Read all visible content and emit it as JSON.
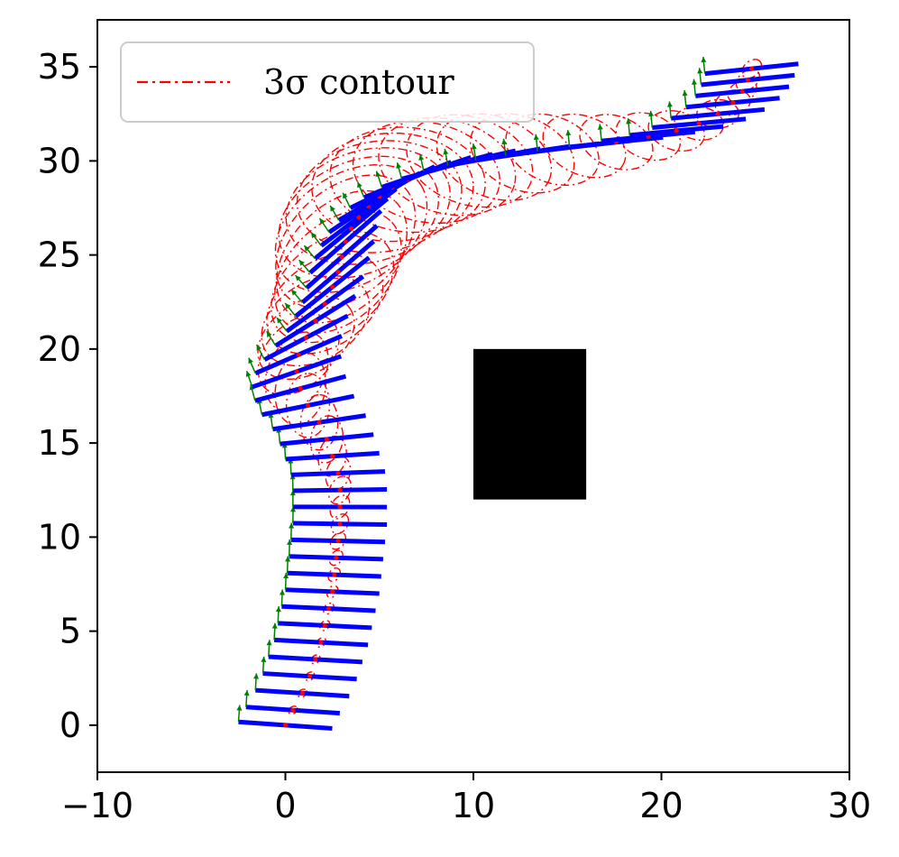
{
  "chart_data": {
    "type": "line",
    "title": "",
    "xlabel": "",
    "ylabel": "",
    "xlim": [
      -10,
      30
    ],
    "ylim": [
      -2.5,
      37.5
    ],
    "xticks": [
      -10,
      0,
      10,
      20,
      30
    ],
    "yticks": [
      0,
      5,
      10,
      15,
      20,
      25,
      30,
      35
    ],
    "xtick_labels": [
      "−10",
      "0",
      "10",
      "20",
      "30"
    ],
    "ytick_labels": [
      "0",
      "5",
      "10",
      "15",
      "20",
      "25",
      "30",
      "35"
    ],
    "grid": false,
    "legend": {
      "position": "top-left",
      "entries": [
        {
          "label": "3σ contour",
          "color": "#ff0000",
          "style": "dash-dot"
        }
      ]
    },
    "obstacle": {
      "x": [
        10,
        16
      ],
      "y": [
        12,
        20
      ],
      "color": "#000000"
    },
    "trajectory": {
      "x": [
        0,
        0.4,
        0.9,
        1.3,
        1.6,
        1.9,
        2.1,
        2.3,
        2.5,
        2.6,
        2.7,
        2.8,
        2.9,
        2.9,
        2.9,
        2.8,
        2.5,
        2.2,
        1.8,
        1.2,
        0.8,
        0.6,
        0.7,
        1.1,
        1.6,
        2.1,
        2.5,
        2.8,
        3.0,
        3.2,
        3.5,
        3.9,
        4.4,
        5.0,
        5.7,
        6.5,
        7.5,
        8.6,
        9.8,
        11.1,
        12.6,
        14.2,
        15.9,
        17.6,
        19.3,
        20.8,
        22.0,
        23.0,
        23.8,
        24.3,
        24.6,
        24.8
      ],
      "y": [
        0,
        0.8,
        1.7,
        2.6,
        3.5,
        4.4,
        5.3,
        6.2,
        7.1,
        8.0,
        8.9,
        9.8,
        10.7,
        11.6,
        12.5,
        13.4,
        14.3,
        15.2,
        16.1,
        17.0,
        17.9,
        18.8,
        19.7,
        20.6,
        21.5,
        22.4,
        23.3,
        24.1,
        24.9,
        25.7,
        26.4,
        27.0,
        27.6,
        28.1,
        28.6,
        29.0,
        29.4,
        29.7,
        30.0,
        30.2,
        30.4,
        30.6,
        30.8,
        31.0,
        31.3,
        31.6,
        32.0,
        32.5,
        33.1,
        33.7,
        34.3,
        34.9
      ]
    },
    "robot_length": 5,
    "sigma_scale": 3,
    "colors": {
      "robot": "#0000ff",
      "heading": "#008000",
      "contour": "#ff0000",
      "center": "#ff0000",
      "axes": "#000000"
    }
  }
}
